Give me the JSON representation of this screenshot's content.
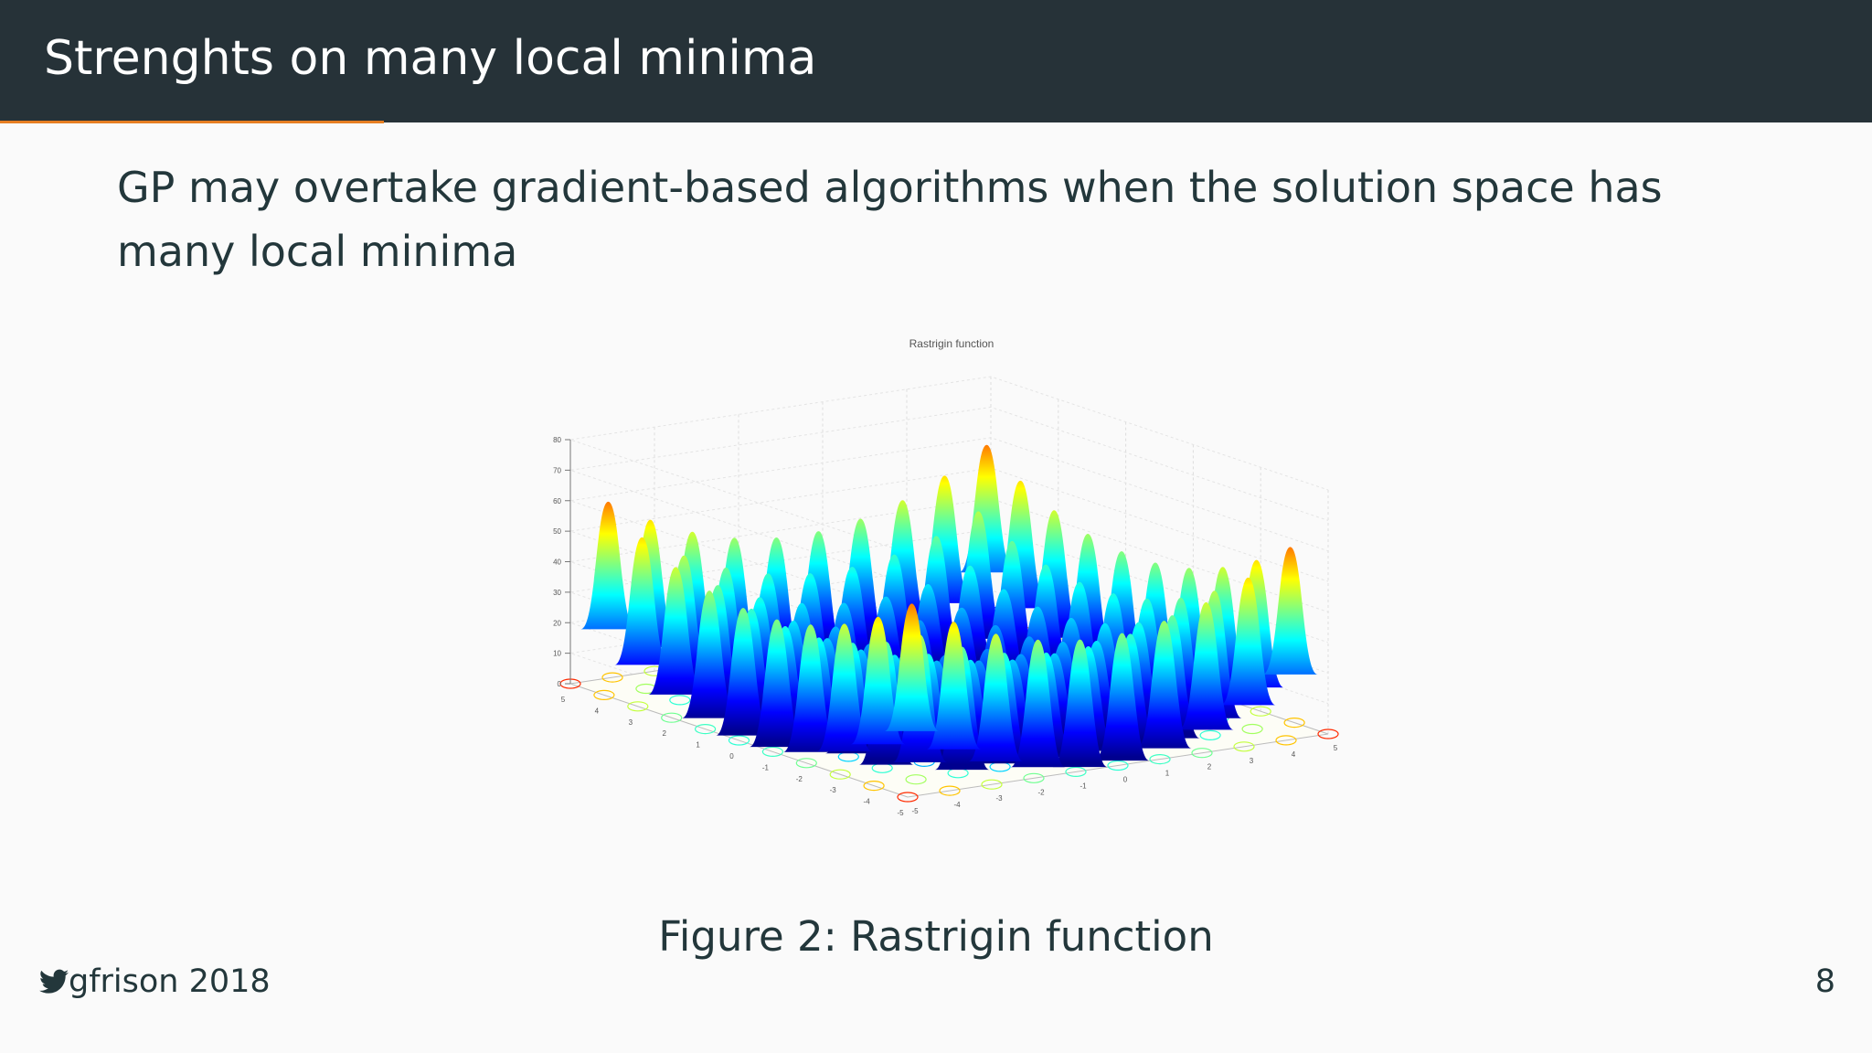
{
  "header": {
    "title": "Strenghts on many local minima"
  },
  "body": {
    "text": "GP may overtake gradient-based algorithms when the solution space has many local minima"
  },
  "figure": {
    "plot_title": "Rastrigin function",
    "z_ticks": [
      "0",
      "10",
      "20",
      "30",
      "40",
      "50",
      "60",
      "70",
      "80"
    ],
    "left_ticks": [
      "5",
      "4",
      "3",
      "2",
      "1",
      "0",
      "-1",
      "-2",
      "-3",
      "-4",
      "-5"
    ],
    "right_ticks": [
      "-5",
      "-4",
      "-3",
      "-2",
      "-1",
      "0",
      "1",
      "2",
      "3",
      "4",
      "5"
    ],
    "caption_label": "Figure 2:",
    "caption_text": "Rastrigin function"
  },
  "footer": {
    "author": "gfrison 2018",
    "page": "8"
  }
}
